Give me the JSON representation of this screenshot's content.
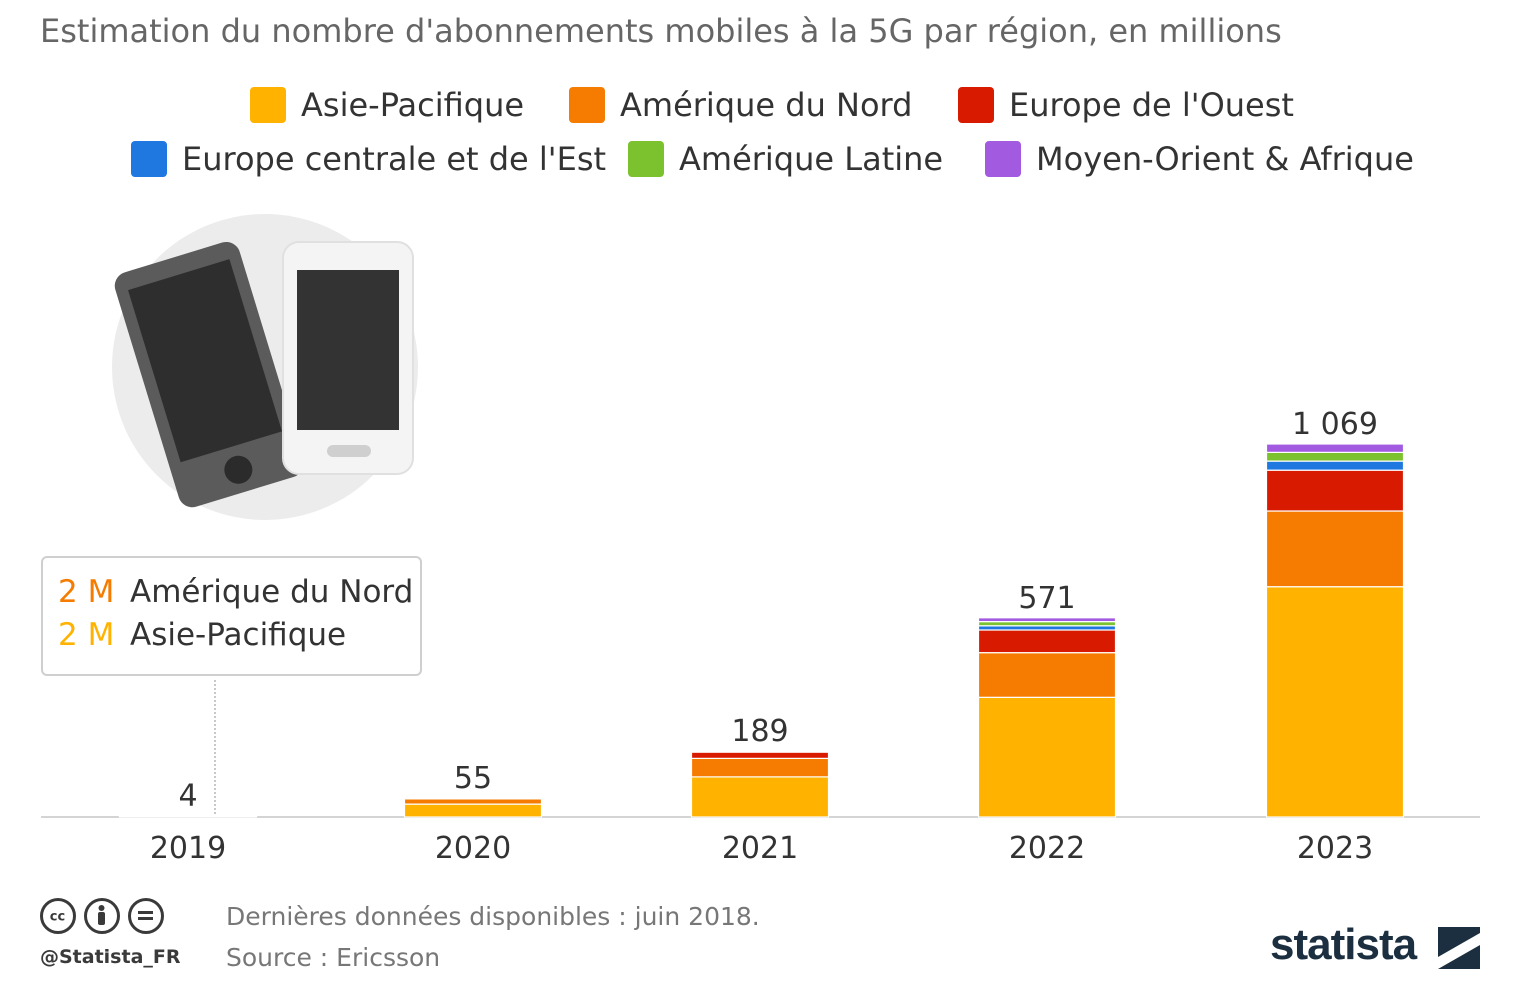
{
  "title": "Estimation du nombre d'abonnements mobiles à la 5G par région, en millions",
  "colors": {
    "asie_pacifique": "#ffb300",
    "amerique_du_nord": "#f57c00",
    "europe_ouest": "#d81b00",
    "europe_centrale_est": "#1e78e0",
    "amerique_latine": "#7cc22e",
    "moyen_orient_afrique": "#a25ae0"
  },
  "legend": [
    {
      "label": "Asie-Pacifique",
      "color": "#ffb300"
    },
    {
      "label": "Amérique du Nord",
      "color": "#f57c00"
    },
    {
      "label": "Europe de l'Ouest",
      "color": "#d81b00"
    },
    {
      "label": "Europe centrale et de l'Est",
      "color": "#1e78e0"
    },
    {
      "label": "Amérique Latine",
      "color": "#7cc22e"
    },
    {
      "label": "Moyen-Orient & Afrique",
      "color": "#a25ae0"
    }
  ],
  "tooltip": {
    "rows": [
      {
        "value": "2 M",
        "label": "Amérique du Nord",
        "color": "#f57c00"
      },
      {
        "value": "2 M",
        "label": "Asie-Pacifique",
        "color": "#ffb300"
      }
    ]
  },
  "chart_data": {
    "type": "bar",
    "stacked": true,
    "categories": [
      "2019",
      "2020",
      "2021",
      "2022",
      "2023"
    ],
    "totals_labels": [
      "4",
      "55",
      "189",
      "571",
      "1 069"
    ],
    "totals": [
      4,
      55,
      189,
      571,
      1069
    ],
    "series": [
      {
        "name": "Asie-Pacifique",
        "color": "#ffb300",
        "values": [
          2,
          37,
          115,
          343,
          660
        ]
      },
      {
        "name": "Amérique du Nord",
        "color": "#f57c00",
        "values": [
          2,
          15,
          53,
          128,
          217
        ]
      },
      {
        "name": "Europe de l'Ouest",
        "color": "#d81b00",
        "values": [
          0,
          3,
          18,
          65,
          117
        ]
      },
      {
        "name": "Europe centrale et de l'Est",
        "color": "#1e78e0",
        "values": [
          0,
          0,
          1,
          12,
          26
        ]
      },
      {
        "name": "Amérique Latine",
        "color": "#7cc22e",
        "values": [
          0,
          0,
          1,
          12,
          25
        ]
      },
      {
        "name": "Moyen-Orient & Afrique",
        "color": "#a25ae0",
        "values": [
          0,
          0,
          1,
          11,
          24
        ]
      }
    ],
    "ylim": [
      0,
      1069
    ],
    "grid": false
  },
  "footer": {
    "handle": "@Statista_FR",
    "note": "Dernières données disponibles : juin 2018.",
    "source": "Source : Ericsson",
    "brand": "statista"
  }
}
